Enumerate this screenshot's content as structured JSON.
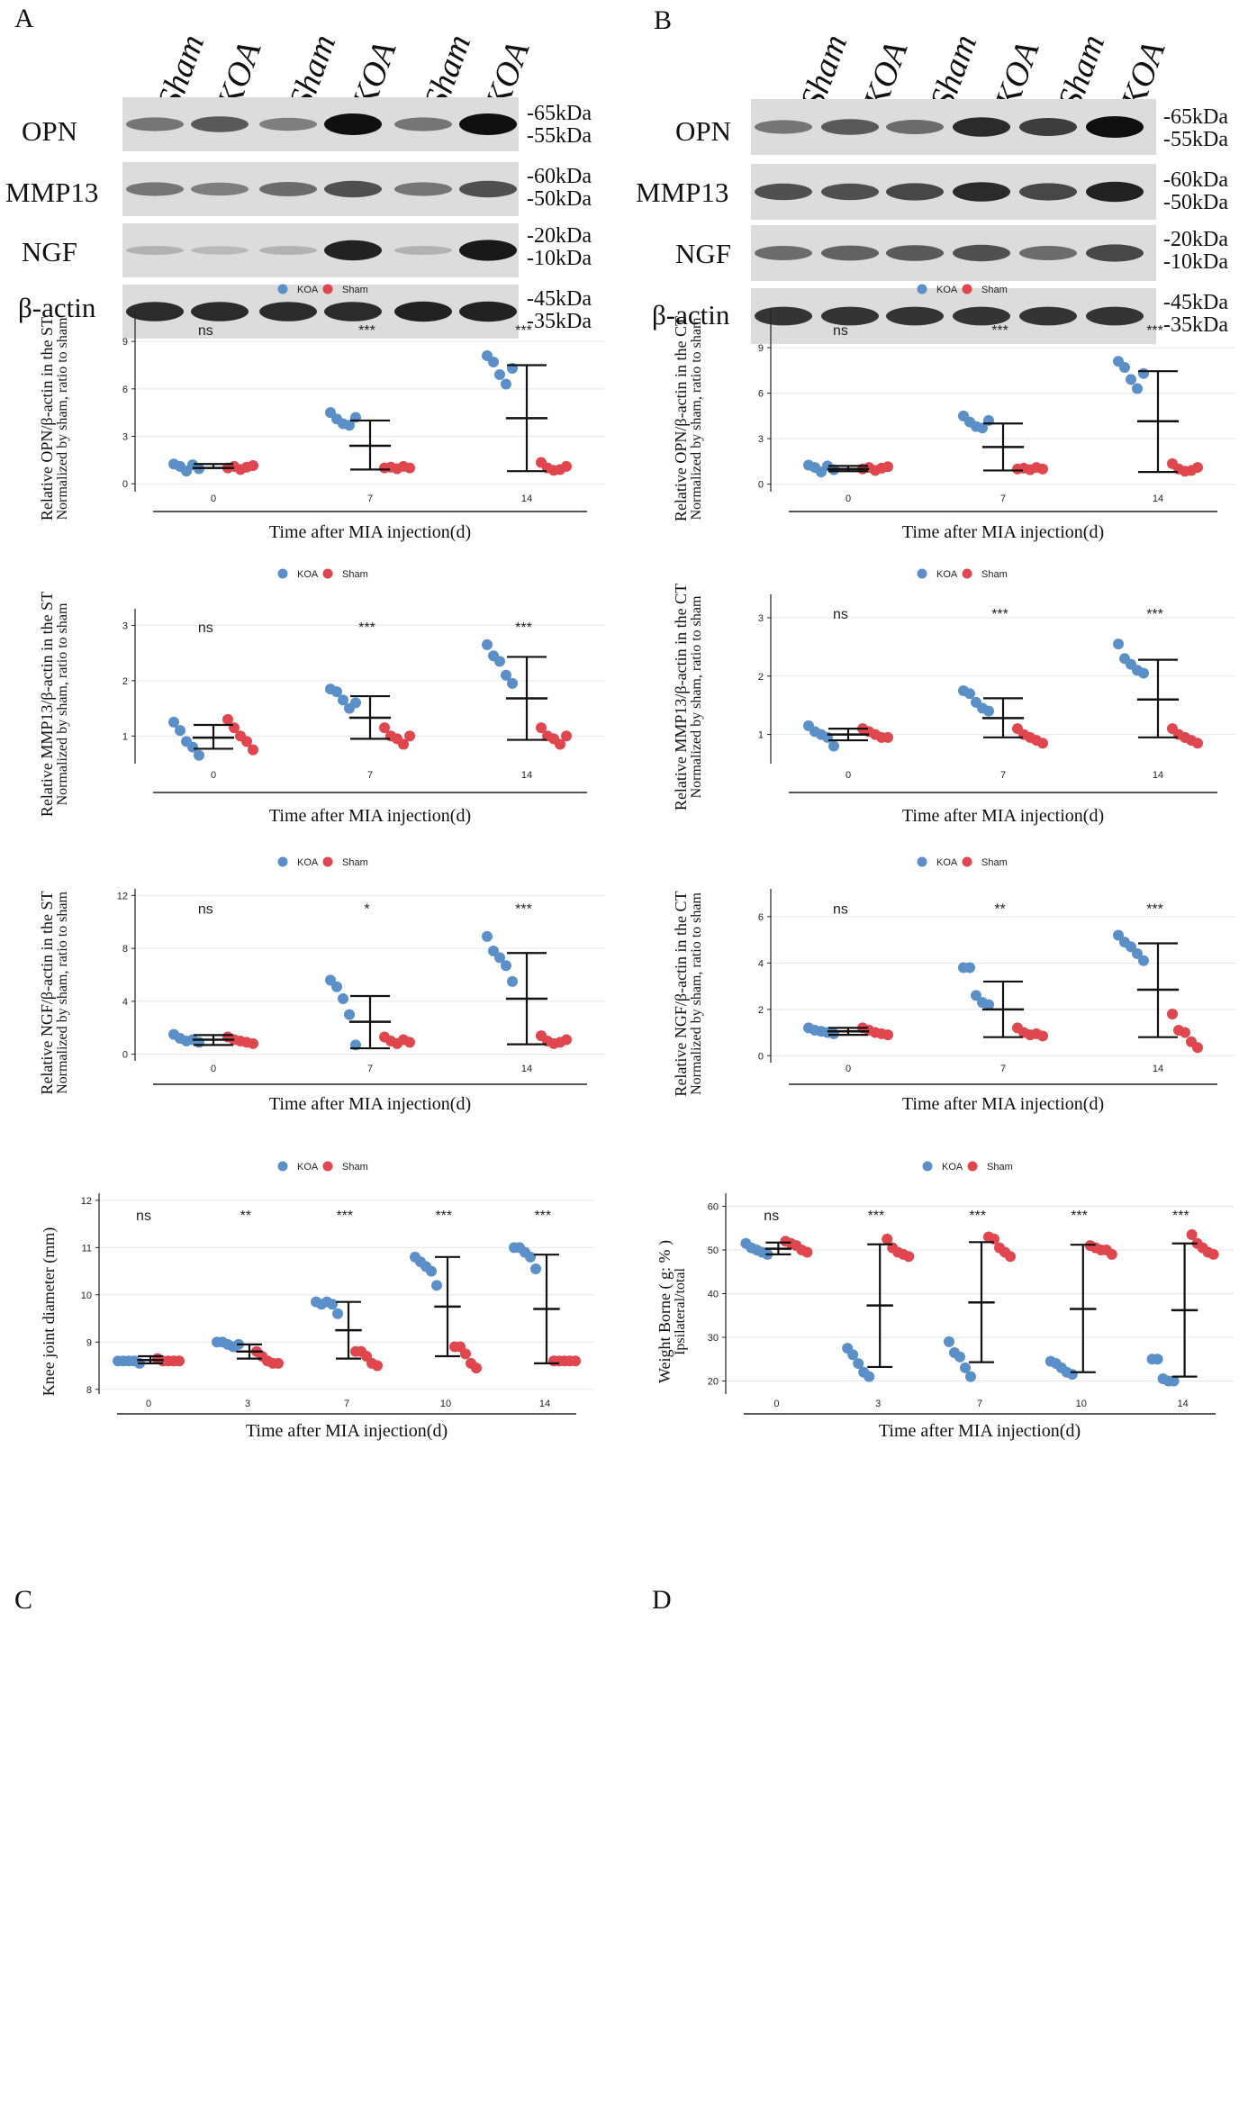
{
  "panels": {
    "A": "A",
    "B": "B",
    "C": "C",
    "D": "D"
  },
  "westernBlots": [
    {
      "panel": "A",
      "lanes": [
        "Sham",
        "KOA",
        "Sham",
        "KOA",
        "Sham",
        "KOA"
      ],
      "rows": [
        {
          "protein": "OPN",
          "markers": [
            "-65kDa",
            "-55kDa"
          ],
          "intensity": [
            0.45,
            0.6,
            0.4,
            1.0,
            0.45,
            1.0
          ]
        },
        {
          "protein": "MMP13",
          "markers": [
            "-60kDa",
            "-50kDa"
          ],
          "intensity": [
            0.45,
            0.4,
            0.5,
            0.65,
            0.45,
            0.65
          ]
        },
        {
          "protein": "NGF",
          "markers": [
            "-20kDa",
            "-10kDa"
          ],
          "intensity": [
            0.12,
            0.08,
            0.12,
            0.9,
            0.12,
            0.95
          ]
        },
        {
          "protein": "β-actin",
          "markers": [
            "-45kDa",
            "-35kDa"
          ],
          "intensity": [
            0.85,
            0.85,
            0.85,
            0.85,
            0.9,
            0.9
          ]
        }
      ]
    },
    {
      "panel": "B",
      "lanes": [
        "Sham",
        "KOA",
        "Sham",
        "KOA",
        "Sham",
        "KOA"
      ],
      "rows": [
        {
          "protein": "OPN",
          "markers": [
            "-65kDa",
            "-55kDa"
          ],
          "intensity": [
            0.45,
            0.6,
            0.5,
            0.85,
            0.75,
            1.0
          ]
        },
        {
          "protein": "MMP13",
          "markers": [
            "-60kDa",
            "-50kDa"
          ],
          "intensity": [
            0.65,
            0.65,
            0.7,
            0.85,
            0.7,
            0.9
          ]
        },
        {
          "protein": "NGF",
          "markers": [
            "-20kDa",
            "-10kDa"
          ],
          "intensity": [
            0.5,
            0.55,
            0.6,
            0.65,
            0.5,
            0.7
          ]
        },
        {
          "protein": "β-actin",
          "markers": [
            "-45kDa",
            "-35kDa"
          ],
          "intensity": [
            0.8,
            0.8,
            0.8,
            0.8,
            0.8,
            0.8
          ]
        }
      ]
    }
  ],
  "legend": {
    "koa": "KOA",
    "sham": "Sham"
  },
  "colors": {
    "koa": "#5b8fc7",
    "sham": "#e0464d",
    "grid": "#e6e6e6",
    "axis": "#222222"
  },
  "chart_data": [
    {
      "type": "scatter",
      "title": "",
      "ylabel1": "Relative OPN/β-actin in the ST",
      "ylabel2": "Normalized by sham, ratio to sham",
      "xlabel": "Time after MIA injection(d)",
      "categories": [
        "0",
        "7",
        "14"
      ],
      "ylim": [
        -0.5,
        11
      ],
      "yticks": [
        0,
        3,
        6,
        9
      ],
      "significance": [
        "ns",
        "***",
        "***"
      ],
      "series": [
        {
          "name": "KOA",
          "values": [
            [
              1.25,
              1.1,
              0.8,
              1.2,
              0.95
            ],
            [
              4.5,
              4.1,
              3.8,
              3.7,
              4.2
            ],
            [
              8.1,
              7.7,
              6.9,
              6.3,
              7.3
            ]
          ]
        },
        {
          "name": "Sham",
          "values": [
            [
              1.0,
              1.1,
              0.9,
              1.05,
              1.15
            ],
            [
              1.0,
              1.05,
              0.95,
              1.1,
              1.0
            ],
            [
              1.35,
              1.0,
              0.85,
              0.9,
              1.1
            ]
          ]
        }
      ],
      "bars": [
        [
          1.0,
          1.0,
          1.25
        ],
        [
          2.4,
          0.9,
          4.0
        ],
        [
          4.15,
          0.8,
          7.5
        ]
      ]
    },
    {
      "type": "scatter",
      "title": "",
      "ylabel1": "Relative OPN/β-actin in the CT",
      "ylabel2": "Normalized by sham, ratio to sham",
      "xlabel": "Time after MIA injection(d)",
      "categories": [
        "0",
        "7",
        "14"
      ],
      "ylim": [
        -0.5,
        11.5
      ],
      "yticks": [
        0,
        3,
        6,
        9
      ],
      "significance": [
        "ns",
        "***",
        "***"
      ],
      "series": [
        {
          "name": "KOA",
          "values": [
            [
              1.25,
              1.1,
              0.8,
              1.2,
              0.95
            ],
            [
              4.5,
              4.1,
              3.8,
              3.7,
              4.2
            ],
            [
              8.1,
              7.7,
              6.9,
              6.3,
              7.3
            ]
          ]
        },
        {
          "name": "Sham",
          "values": [
            [
              1.0,
              1.1,
              0.9,
              1.05,
              1.15
            ],
            [
              1.0,
              1.05,
              0.95,
              1.1,
              1.0
            ],
            [
              1.35,
              1.0,
              0.85,
              0.9,
              1.1
            ]
          ]
        }
      ],
      "bars": [
        [
          1.0,
          0.85,
          1.2
        ],
        [
          2.45,
          0.9,
          4.0
        ],
        [
          4.15,
          0.8,
          7.45
        ]
      ]
    },
    {
      "type": "scatter",
      "title": "",
      "ylabel1": "Relative MMP13/β-actin in the ST",
      "ylabel2": "Normalized by sham, ratio to sham",
      "xlabel": "Time after MIA injection(d)",
      "categories": [
        "0",
        "7",
        "14"
      ],
      "ylim": [
        0.5,
        3.3
      ],
      "yticks": [
        1,
        2,
        3
      ],
      "significance": [
        "ns",
        "***",
        "***"
      ],
      "series": [
        {
          "name": "KOA",
          "values": [
            [
              1.25,
              1.1,
              0.9,
              0.8,
              0.65
            ],
            [
              1.85,
              1.8,
              1.65,
              1.5,
              1.6
            ],
            [
              2.65,
              2.45,
              2.35,
              2.1,
              1.95
            ]
          ]
        },
        {
          "name": "Sham",
          "values": [
            [
              1.3,
              1.15,
              1.0,
              0.9,
              0.75
            ],
            [
              1.15,
              1.0,
              0.95,
              0.85,
              1.0
            ],
            [
              1.15,
              1.0,
              0.95,
              0.85,
              1.0
            ]
          ]
        }
      ],
      "bars": [
        [
          0.97,
          0.77,
          1.2
        ],
        [
          1.33,
          0.95,
          1.72
        ],
        [
          1.68,
          0.93,
          2.43
        ]
      ]
    },
    {
      "type": "scatter",
      "title": "",
      "ylabel1": "Relative MMP13/β-actin in the CT",
      "ylabel2": "Normalized by sham, ratio to sham",
      "xlabel": "Time after MIA injection(d)",
      "categories": [
        "0",
        "7",
        "14"
      ],
      "ylim": [
        0.5,
        3.4
      ],
      "yticks": [
        1,
        2,
        3
      ],
      "significance": [
        "ns",
        "***",
        "***"
      ],
      "series": [
        {
          "name": "KOA",
          "values": [
            [
              1.15,
              1.05,
              1.0,
              0.95,
              0.8
            ],
            [
              1.75,
              1.7,
              1.55,
              1.45,
              1.4
            ],
            [
              2.55,
              2.3,
              2.2,
              2.1,
              2.05
            ]
          ]
        },
        {
          "name": "Sham",
          "values": [
            [
              1.1,
              1.05,
              1.0,
              0.95,
              0.95
            ],
            [
              1.1,
              1.0,
              0.95,
              0.9,
              0.85
            ],
            [
              1.1,
              1.0,
              0.95,
              0.9,
              0.85
            ]
          ]
        }
      ],
      "bars": [
        [
          1.0,
          0.9,
          1.1
        ],
        [
          1.28,
          0.95,
          1.62
        ],
        [
          1.6,
          0.95,
          2.28
        ]
      ]
    },
    {
      "type": "scatter",
      "title": "",
      "ylabel1": "Relative NGF/β-actin in the ST",
      "ylabel2": "Normalized by sham, ratio to sham",
      "xlabel": "Time after MIA injection(d)",
      "categories": [
        "0",
        "7",
        "14"
      ],
      "ylim": [
        -0.5,
        12.5
      ],
      "yticks": [
        0,
        4,
        8,
        12
      ],
      "significance": [
        "ns",
        "*",
        "***"
      ],
      "series": [
        {
          "name": "KOA",
          "values": [
            [
              1.5,
              1.2,
              1.0,
              1.1,
              0.9
            ],
            [
              5.6,
              5.1,
              4.2,
              3.0,
              0.7
            ],
            [
              8.9,
              7.8,
              7.3,
              6.7,
              5.5
            ]
          ]
        },
        {
          "name": "Sham",
          "values": [
            [
              1.3,
              1.1,
              1.0,
              0.9,
              0.8
            ],
            [
              1.3,
              1.0,
              0.8,
              1.1,
              0.9
            ],
            [
              1.4,
              1.0,
              0.8,
              0.9,
              1.1
            ]
          ]
        }
      ],
      "bars": [
        [
          1.1,
          0.7,
          1.45
        ],
        [
          2.45,
          0.45,
          4.4
        ],
        [
          4.2,
          0.75,
          7.65
        ]
      ]
    },
    {
      "type": "scatter",
      "title": "",
      "ylabel1": "Relative NGF/β-actin in the CT",
      "ylabel2": "Normalized by sham, ratio to sham",
      "xlabel": "Time after MIA injection(d)",
      "categories": [
        "0",
        "7",
        "14"
      ],
      "ylim": [
        -0.3,
        7.2
      ],
      "yticks": [
        0,
        2,
        4,
        6
      ],
      "significance": [
        "ns",
        "**",
        "***"
      ],
      "series": [
        {
          "name": "KOA",
          "values": [
            [
              1.2,
              1.1,
              1.05,
              1.0,
              0.95
            ],
            [
              3.8,
              3.8,
              2.6,
              2.3,
              2.2
            ],
            [
              5.2,
              4.9,
              4.7,
              4.4,
              4.1
            ]
          ]
        },
        {
          "name": "Sham",
          "values": [
            [
              1.2,
              1.1,
              1.0,
              0.95,
              0.9
            ],
            [
              1.2,
              1.0,
              0.9,
              0.95,
              0.85
            ],
            [
              1.8,
              1.1,
              1.0,
              0.6,
              0.35
            ]
          ]
        }
      ],
      "bars": [
        [
          1.05,
          0.9,
          1.2
        ],
        [
          2.0,
          0.8,
          3.2
        ],
        [
          2.85,
          0.8,
          4.85
        ]
      ]
    },
    {
      "type": "scatter",
      "title": "",
      "ylabel1": "Knee joint diameter (mm)",
      "ylabel2": "",
      "xlabel": "Time after MIA injection(d)",
      "categories": [
        "0",
        "3",
        "7",
        "10",
        "14"
      ],
      "ylim": [
        7.9,
        12.15
      ],
      "yticks": [
        8,
        9,
        10,
        11,
        12
      ],
      "significance": [
        "ns",
        "**",
        "***",
        "***",
        "***"
      ],
      "series": [
        {
          "name": "KOA",
          "values": [
            [
              8.6,
              8.6,
              8.6,
              8.6,
              8.55
            ],
            [
              9.0,
              9.0,
              8.95,
              8.9,
              8.95
            ],
            [
              9.85,
              9.8,
              9.85,
              9.8,
              9.6
            ],
            [
              10.8,
              10.7,
              10.6,
              10.5,
              10.2
            ],
            [
              11.0,
              11.0,
              10.9,
              10.8,
              10.55
            ]
          ]
        },
        {
          "name": "Sham",
          "values": [
            [
              8.65,
              8.6,
              8.6,
              8.6,
              8.6
            ],
            [
              8.8,
              8.7,
              8.6,
              8.55,
              8.55
            ],
            [
              8.8,
              8.8,
              8.7,
              8.55,
              8.5
            ],
            [
              8.9,
              8.9,
              8.75,
              8.55,
              8.45
            ],
            [
              8.6,
              8.6,
              8.6,
              8.6,
              8.6
            ]
          ]
        }
      ],
      "bars": [
        [
          8.62,
          8.55,
          8.7
        ],
        [
          8.8,
          8.65,
          8.95
        ],
        [
          9.25,
          8.65,
          9.85
        ],
        [
          9.75,
          8.7,
          10.8
        ],
        [
          9.7,
          8.55,
          10.85
        ]
      ]
    },
    {
      "type": "scatter",
      "title": "",
      "ylabel1": "Weight Borne ( g: % )",
      "ylabel2": "Ipsilateral/total",
      "xlabel": "Time after MIA injection(d)",
      "categories": [
        "0",
        "3",
        "7",
        "10",
        "14"
      ],
      "ylim": [
        17,
        63
      ],
      "yticks": [
        20,
        30,
        40,
        50,
        60
      ],
      "significance": [
        "ns",
        "***",
        "***",
        "***",
        "***"
      ],
      "series": [
        {
          "name": "KOA",
          "values": [
            [
              51.5,
              50.5,
              50,
              49.5,
              49
            ],
            [
              27.5,
              26,
              24,
              22,
              21
            ],
            [
              29,
              26.5,
              25.5,
              23,
              21
            ],
            [
              24.5,
              24,
              23,
              22,
              21.5
            ],
            [
              25,
              25,
              20.5,
              20,
              20
            ]
          ]
        },
        {
          "name": "Sham",
          "values": [
            [
              52,
              51.5,
              51,
              50,
              49.5
            ],
            [
              52.5,
              50.5,
              49.5,
              49,
              48.5
            ],
            [
              53,
              52.5,
              50.5,
              49.5,
              48.5
            ],
            [
              51,
              50.5,
              50,
              50,
              49
            ],
            [
              53.5,
              51.5,
              50.5,
              49.5,
              49
            ]
          ]
        }
      ],
      "bars": [
        [
          50.3,
          49,
          51.7
        ],
        [
          37.3,
          23.2,
          51.3
        ],
        [
          38,
          24.3,
          51.8
        ],
        [
          36.5,
          22,
          51.2
        ],
        [
          36.2,
          21,
          51.5
        ]
      ]
    }
  ]
}
